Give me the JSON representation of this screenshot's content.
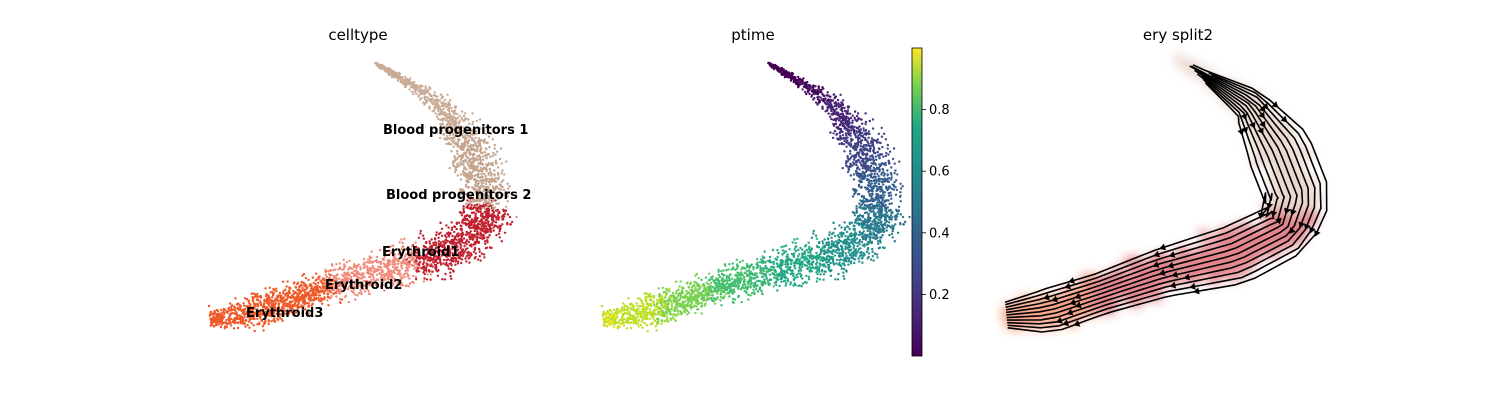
{
  "chart_data": [
    {
      "type": "scatter",
      "title": "celltype",
      "legend_placement": "on data",
      "categories": [
        {
          "name": "Blood progenitors 1",
          "color": "#c9ab96",
          "label": "Blood progenitors 1"
        },
        {
          "name": "Blood progenitors 2",
          "color": "#c4a58f",
          "label": "Blood progenitors 2"
        },
        {
          "name": "Erythroid1",
          "color": "#c1212f",
          "label": "Erythroid1"
        },
        {
          "name": "Erythroid2",
          "color": "#f08a7a",
          "label": "Erythroid2"
        },
        {
          "name": "Erythroid3",
          "color": "#ef5a28",
          "label": "Erythroid3"
        }
      ]
    },
    {
      "type": "scatter",
      "title": "ptime",
      "colormap": "viridis",
      "colorbar": {
        "range": [
          0,
          1
        ],
        "ticks": [
          "0.2",
          "0.4",
          "0.6",
          "0.8"
        ]
      }
    },
    {
      "type": "scatter",
      "title": "ery split2",
      "overlay": "streamlines",
      "colors": {
        "progenitors": "#d9b8a8",
        "erythroid1": "#c9232e",
        "erythroid3": "#ef5a28",
        "stream": "#000000"
      }
    }
  ]
}
